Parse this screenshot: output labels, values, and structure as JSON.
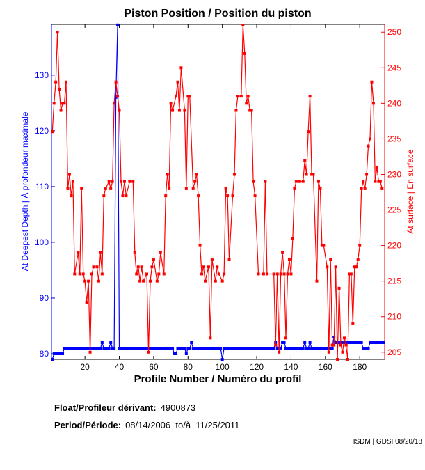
{
  "chart_data": {
    "type": "line",
    "title": "Piston Position / Position du piston",
    "xlabel": "Profile Number / Numéro du profil",
    "ylabel_left": "At Deepest Depth | À profondeur maximale",
    "ylabel_right": "At surface | En surface",
    "xlim": [
      0.5,
      194.5
    ],
    "ylim_left": [
      79,
      139.1
    ],
    "ylim_right": [
      204,
      251.1
    ],
    "x_ticks": [
      20,
      40,
      60,
      80,
      100,
      120,
      140,
      160,
      180
    ],
    "y_ticks_left": [
      80,
      90,
      100,
      110,
      120,
      130
    ],
    "y_ticks_right": [
      205,
      210,
      215,
      220,
      225,
      230,
      235,
      240,
      245,
      250
    ],
    "grid": false,
    "colors": {
      "left": "#0000ff",
      "right": "#ff0000"
    },
    "series": [
      {
        "axis": "left",
        "color": "#0000ff",
        "x_start": 1,
        "values": [
          79,
          80,
          80,
          80,
          80,
          80,
          80,
          81,
          81,
          81,
          81,
          81,
          81,
          81,
          81,
          81,
          81,
          81,
          81,
          81,
          81,
          81,
          81,
          81,
          81,
          81,
          81,
          81,
          81,
          82,
          81,
          81,
          81,
          81,
          82,
          81,
          81,
          126,
          139,
          81,
          81,
          81,
          81,
          81,
          81,
          81,
          81,
          81,
          81,
          81,
          81,
          81,
          81,
          81,
          81,
          81,
          81,
          81,
          81,
          81,
          81,
          81,
          81,
          81,
          81,
          81,
          81,
          81,
          81,
          81,
          81,
          80,
          80,
          81,
          81,
          81,
          81,
          81,
          80,
          81,
          81,
          82,
          81,
          81,
          81,
          81,
          81,
          81,
          81,
          81,
          81,
          81,
          81,
          81,
          81,
          81,
          81,
          81,
          81,
          79,
          81,
          81,
          81,
          81,
          81,
          81,
          81,
          81,
          81,
          81,
          81,
          81,
          81,
          81,
          81,
          81,
          81,
          81,
          81,
          81,
          81,
          81,
          81,
          81,
          81,
          81,
          81,
          81,
          81,
          81,
          82,
          81,
          81,
          81,
          82,
          82,
          81,
          81,
          81,
          81,
          81,
          81,
          81,
          81,
          81,
          81,
          81,
          82,
          81,
          81,
          82,
          81,
          81,
          81,
          81,
          81,
          81,
          81,
          81,
          81,
          81,
          81,
          81,
          81,
          83,
          82,
          82,
          82,
          82,
          82,
          82,
          82,
          82,
          82,
          82,
          82,
          82,
          82,
          82,
          82,
          82,
          81,
          81,
          81,
          81,
          82,
          82,
          82,
          82,
          82,
          82,
          82,
          82,
          82
        ]
      },
      {
        "axis": "right",
        "color": "#ff0000",
        "points": [
          [
            1,
            236
          ],
          [
            2,
            240
          ],
          [
            3,
            243
          ],
          [
            4,
            250
          ],
          [
            5,
            242
          ],
          [
            6,
            239
          ],
          [
            7,
            240
          ],
          [
            8,
            240
          ],
          [
            9,
            243
          ],
          [
            10,
            228
          ],
          [
            11,
            230
          ],
          [
            12,
            227
          ],
          [
            13,
            229
          ],
          [
            14,
            216
          ],
          [
            16,
            219
          ],
          [
            17,
            216
          ],
          [
            18,
            228
          ],
          [
            19,
            216
          ],
          [
            20,
            215
          ],
          [
            21,
            212
          ],
          [
            22,
            215
          ],
          [
            23,
            205
          ],
          [
            24,
            216
          ],
          [
            25,
            217
          ],
          [
            27,
            217
          ],
          [
            28,
            215
          ],
          [
            29,
            219
          ],
          [
            30,
            216
          ],
          [
            31,
            227
          ],
          [
            32,
            228
          ],
          [
            34,
            229
          ],
          [
            35,
            228
          ],
          [
            36,
            229
          ],
          [
            37,
            240
          ],
          [
            38,
            243
          ],
          [
            39,
            241
          ],
          [
            40,
            239
          ],
          [
            41,
            229
          ],
          [
            42,
            227
          ],
          [
            43,
            229
          ],
          [
            44,
            227
          ],
          [
            46,
            229
          ],
          [
            48,
            229
          ],
          [
            49,
            219
          ],
          [
            50,
            216
          ],
          [
            51,
            217
          ],
          [
            52,
            215
          ],
          [
            53,
            217
          ],
          [
            54,
            215
          ],
          [
            56,
            216
          ],
          [
            57,
            205
          ],
          [
            58,
            215
          ],
          [
            59,
            217
          ],
          [
            60,
            218
          ],
          [
            62,
            215
          ],
          [
            63,
            216
          ],
          [
            64,
            219
          ],
          [
            66,
            216
          ],
          [
            67,
            227
          ],
          [
            68,
            230
          ],
          [
            69,
            228
          ],
          [
            70,
            240
          ],
          [
            71,
            239
          ],
          [
            73,
            241
          ],
          [
            74,
            243
          ],
          [
            75,
            239
          ],
          [
            76,
            245
          ],
          [
            78,
            239
          ],
          [
            79,
            228
          ],
          [
            80,
            241
          ],
          [
            81,
            241
          ],
          [
            83,
            228
          ],
          [
            84,
            229
          ],
          [
            85,
            230
          ],
          [
            86,
            227
          ],
          [
            87,
            220
          ],
          [
            88,
            216
          ],
          [
            89,
            217
          ],
          [
            90,
            215
          ],
          [
            92,
            217
          ],
          [
            93,
            207
          ],
          [
            94,
            218
          ],
          [
            96,
            215
          ],
          [
            97,
            217
          ],
          [
            98,
            216
          ],
          [
            100,
            215
          ],
          [
            101,
            216
          ],
          [
            102,
            228
          ],
          [
            103,
            227
          ],
          [
            104,
            218
          ],
          [
            106,
            227
          ],
          [
            107,
            230
          ],
          [
            108,
            239
          ],
          [
            109,
            241
          ],
          [
            111,
            241
          ],
          [
            112,
            251
          ],
          [
            113,
            247
          ],
          [
            114,
            240
          ],
          [
            115,
            241
          ],
          [
            116,
            239
          ],
          [
            117,
            239
          ],
          [
            118,
            229
          ],
          [
            119,
            227
          ],
          [
            121,
            216
          ],
          [
            124,
            216
          ],
          [
            125,
            229
          ],
          [
            126,
            216
          ],
          [
            130,
            216
          ],
          [
            131,
            206
          ],
          [
            132,
            216
          ],
          [
            133,
            205
          ],
          [
            134,
            216
          ],
          [
            135,
            219
          ],
          [
            136,
            216
          ],
          [
            137,
            207
          ],
          [
            138,
            216
          ],
          [
            139,
            218
          ],
          [
            140,
            216
          ],
          [
            141,
            221
          ],
          [
            142,
            228
          ],
          [
            143,
            229
          ],
          [
            145,
            229
          ],
          [
            147,
            229
          ],
          [
            148,
            232
          ],
          [
            149,
            230
          ],
          [
            150,
            236
          ],
          [
            151,
            241
          ],
          [
            152,
            230
          ],
          [
            153,
            230
          ],
          [
            155,
            215
          ],
          [
            156,
            229
          ],
          [
            157,
            228
          ],
          [
            158,
            220
          ],
          [
            159,
            220
          ],
          [
            161,
            217
          ],
          [
            162,
            205
          ],
          [
            163,
            218
          ],
          [
            164,
            206
          ],
          [
            165,
            206
          ],
          [
            166,
            217
          ],
          [
            167,
            204
          ],
          [
            168,
            214
          ],
          [
            169,
            206
          ],
          [
            170,
            205
          ],
          [
            171,
            207
          ],
          [
            172,
            206
          ],
          [
            173,
            204
          ],
          [
            174,
            216
          ],
          [
            175,
            216
          ],
          [
            176,
            209
          ],
          [
            177,
            217
          ],
          [
            178,
            217
          ],
          [
            179,
            218
          ],
          [
            180,
            220
          ],
          [
            181,
            228
          ],
          [
            182,
            229
          ],
          [
            183,
            228
          ],
          [
            184,
            230
          ],
          [
            185,
            234
          ],
          [
            186,
            235
          ],
          [
            187,
            243
          ],
          [
            188,
            240
          ],
          [
            189,
            229
          ],
          [
            190,
            231
          ],
          [
            191,
            229
          ],
          [
            192,
            229
          ],
          [
            193,
            228
          ]
        ]
      }
    ]
  },
  "footer": {
    "float_label": "Float/Profileur dérivant:",
    "float_value": "4900873",
    "period_label": "Period/Période:",
    "period_value": "08/14/2006  to/à  11/25/2011",
    "credit": "ISDM | GDSI 08/20/18"
  }
}
